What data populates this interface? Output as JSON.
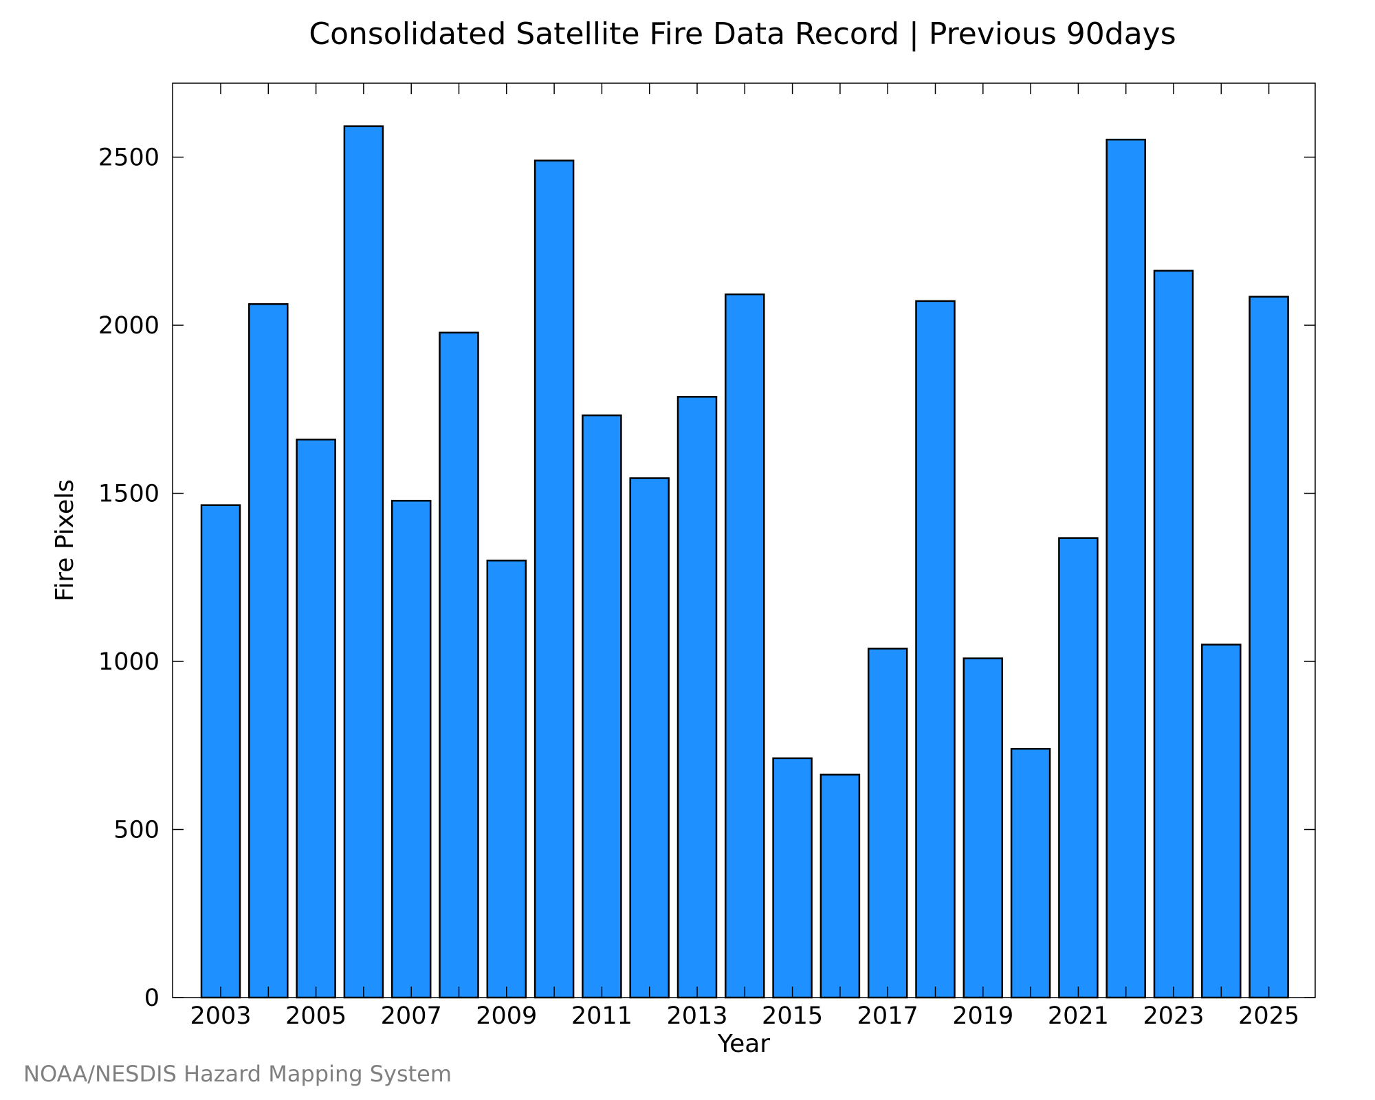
{
  "chart_data": {
    "type": "bar",
    "title": "Consolidated Satellite Fire Data Record | Previous 90days",
    "xlabel": "Year",
    "ylabel": "Fire Pixels",
    "categories": [
      "2003",
      "2004",
      "2005",
      "2006",
      "2007",
      "2008",
      "2009",
      "2010",
      "2011",
      "2012",
      "2013",
      "2014",
      "2015",
      "2016",
      "2017",
      "2018",
      "2019",
      "2020",
      "2021",
      "2022",
      "2023",
      "2024",
      "2025"
    ],
    "values": [
      1465,
      2063,
      1660,
      2592,
      1478,
      1978,
      1300,
      2490,
      1732,
      1545,
      1787,
      2092,
      712,
      663,
      1038,
      2072,
      1009,
      740,
      1367,
      2552,
      2162,
      1050,
      2085
    ],
    "x_tick_labels": [
      "2003",
      "2005",
      "2007",
      "2009",
      "2011",
      "2013",
      "2015",
      "2017",
      "2019",
      "2021",
      "2023",
      "2025"
    ],
    "y_ticks": [
      0,
      500,
      1000,
      1500,
      2000,
      2500
    ],
    "ylim": [
      0,
      2720
    ],
    "bar_color": "#1e90ff",
    "edge_color": "#000000",
    "grid": false,
    "legend": null
  },
  "credit": "NOAA/NESDIS Hazard Mapping System"
}
